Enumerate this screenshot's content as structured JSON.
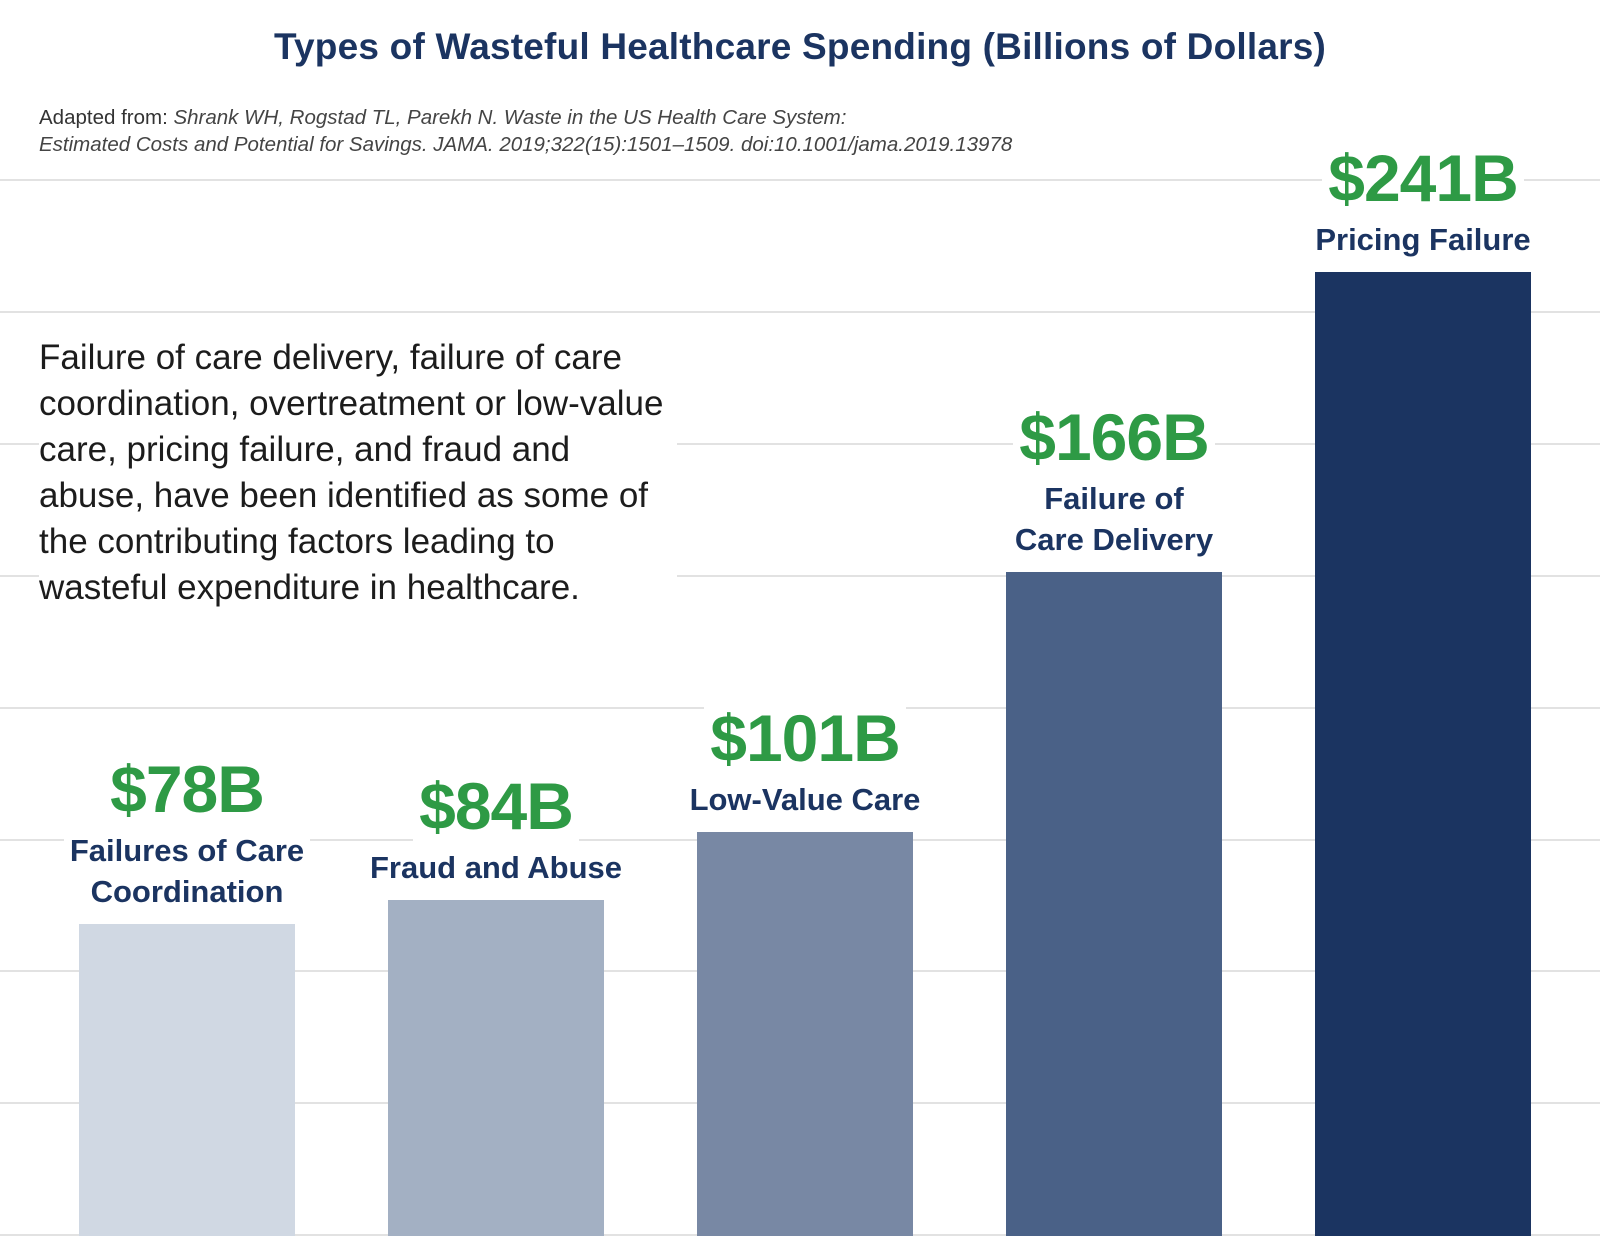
{
  "title": "Types of Wasteful Healthcare Spending (Billions of Dollars)",
  "source": {
    "label": "Adapted from:",
    "citation_line1": "Shrank WH, Rogstad TL, Parekh N. Waste in the US Health Care System:",
    "citation_line2": "Estimated Costs and Potential for Savings. JAMA. 2019;322(15):1501–1509. doi:10.1001/jama.2019.13978"
  },
  "description": "Failure of care delivery, failure of care coordination, overtreatment or low-value care, pricing failure, and fraud and abuse, have been identified as some of the contributing factors leading to wasteful expenditure in healthcare.",
  "chart_data": {
    "type": "bar",
    "title": "Types of Wasteful Healthcare Spending (Billions of Dollars)",
    "categories": [
      "Failures of Care Coordination",
      "Fraud and Abuse",
      "Low-Value Care",
      "Failure of Care Delivery",
      "Pricing Failure"
    ],
    "label_lines": [
      [
        "Failures of Care",
        "Coordination"
      ],
      [
        "Fraud and Abuse"
      ],
      [
        "Low-Value Care"
      ],
      [
        "Failure of",
        "Care Delivery"
      ],
      [
        "Pricing Failure"
      ]
    ],
    "values": [
      78,
      84,
      101,
      166,
      241
    ],
    "value_labels": [
      "$78B",
      "$84B",
      "$101B",
      "$166B",
      "$241B"
    ],
    "unit": "Billions of Dollars",
    "colors": [
      "#d0d8e3",
      "#a3b0c3",
      "#7888a4",
      "#4a6187",
      "#1b3461"
    ],
    "value_color": "#2e9a45",
    "label_color": "#1b3461",
    "gridline_color": "#d9d9d9",
    "ylim": [
      0,
      290
    ],
    "grid": true,
    "xlabel": "",
    "ylabel": ""
  }
}
